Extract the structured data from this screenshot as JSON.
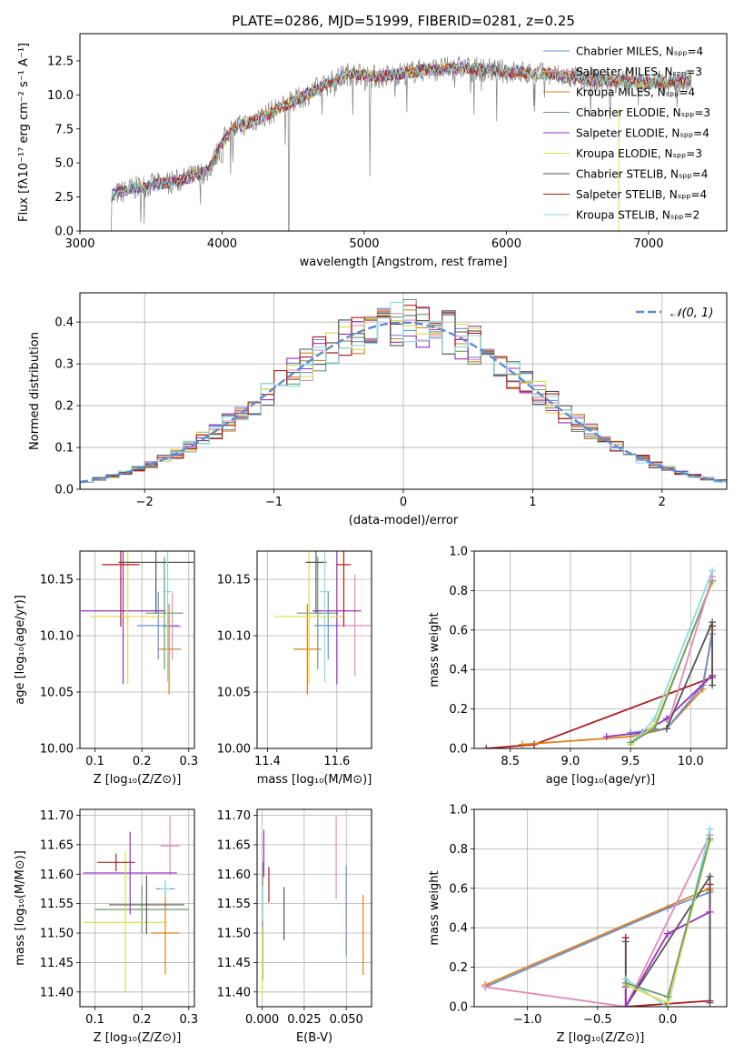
{
  "chart_data": [
    {
      "id": "spectrum",
      "type": "line",
      "title": "PLATE=0286, MJD=51999, FIBERID=0281, z=0.25",
      "xlabel": "wavelength [Angstrom, rest frame]",
      "ylabel": "Flux [fλ10⁻¹⁷ erg cm⁻² s⁻¹ A⁻¹]",
      "xlim": [
        3000,
        7550
      ],
      "ylim": [
        0,
        14.5
      ],
      "xticks": [
        "3000",
        "4000",
        "5000",
        "6000",
        "7000"
      ],
      "yticks": [
        "0.0",
        "2.5",
        "5.0",
        "7.5",
        "10.0",
        "12.5"
      ],
      "observed_color": "#808080",
      "continuum_nodes": {
        "x": [
          3220,
          3400,
          3700,
          3900,
          4050,
          4200,
          4500,
          4700,
          4900,
          5100,
          5400,
          5700,
          6000,
          6300,
          6600,
          6800,
          7000,
          7300
        ],
        "y": [
          2.6,
          3.2,
          3.7,
          4.4,
          7.4,
          8.0,
          9.5,
          10.6,
          11.6,
          11.3,
          11.8,
          12.0,
          11.7,
          11.5,
          11.1,
          11.0,
          10.9,
          11.0
        ]
      },
      "legend": {
        "location": "upper right",
        "entries": [
          {
            "label": "Chabrier MILES, Nₛₚₚ=4",
            "color": "#6a8fd8"
          },
          {
            "label": "Salpeter MILES, Nₛₚₚ=3",
            "color": "#e68ab8"
          },
          {
            "label": "Kroupa MILES, Nₛₚₚ=4",
            "color": "#d98018"
          },
          {
            "label": "Chabrier ELODIE, Nₛₚₚ=3",
            "color": "#6d9a6d"
          },
          {
            "label": "Salpeter ELODIE, Nₛₚₚ=4",
            "color": "#9a2fc0"
          },
          {
            "label": "Kroupa ELODIE, Nₛₚₚ=3",
            "color": "#dede4a"
          },
          {
            "label": "Chabrier STELIB, Nₛₚₚ=4",
            "color": "#555555"
          },
          {
            "label": "Salpeter STELIB, Nₛₚₚ=4",
            "color": "#b21a1a"
          },
          {
            "label": "Kroupa STELIB, Nₛₚₚ=2",
            "color": "#86dce0"
          }
        ]
      }
    },
    {
      "id": "residuals",
      "type": "histogram",
      "xlabel": "(data-model)/error",
      "ylabel": "Normed distribution",
      "xlim": [
        -2.5,
        2.5
      ],
      "ylim": [
        0,
        0.47
      ],
      "xticks": [
        "−2",
        "−1",
        "0",
        "1",
        "2"
      ],
      "yticks": [
        "0.0",
        "0.1",
        "0.2",
        "0.3",
        "0.4"
      ],
      "grid": true,
      "bin_width": 0.1,
      "reference_curve": {
        "label": "𝒩(0, 1)",
        "mean": 0,
        "sigma": 1,
        "color": "#5b8bd4"
      }
    },
    {
      "id": "age-vs-z",
      "type": "scatter",
      "xlabel": "Z [log₁₀(Z/Z⊙)]",
      "ylabel": "age  [log₁₀(age/yr)]",
      "xlim": [
        0.068,
        0.312
      ],
      "ylim": [
        10.0,
        10.175
      ],
      "xticks": [
        "0.1",
        "0.2",
        "0.3"
      ],
      "yticks": [
        "10.00",
        "10.05",
        "10.10",
        "10.15"
      ],
      "grid": true,
      "points": [
        {
          "color": "#6a8fd8",
          "x": 0.235,
          "xerr": 0.045,
          "y": 10.109,
          "yerr": 0.03
        },
        {
          "color": "#e68ab8",
          "x": 0.265,
          "xerr": 0.02,
          "y": 10.108,
          "yerr": 0.03
        },
        {
          "color": "#d98018",
          "x": 0.258,
          "xerr": 0.025,
          "y": 10.088,
          "yerr": 0.04
        },
        {
          "color": "#6d9a6d",
          "x": 0.248,
          "xerr": 0.04,
          "y": 10.12,
          "yerr": 0.05
        },
        {
          "color": "#9a2fc0",
          "x": 0.16,
          "xerr": 0.09,
          "y": 10.122,
          "yerr": 0.065
        },
        {
          "color": "#dede4a",
          "x": 0.17,
          "xerr": 0.08,
          "y": 10.117,
          "yerr": 0.06
        },
        {
          "color": "#555555",
          "x": 0.23,
          "xerr": 0.08,
          "y": 10.165,
          "yerr": 0.045
        },
        {
          "color": "#b21a1a",
          "x": 0.155,
          "xerr": 0.04,
          "y": 10.163,
          "yerr": 0.055
        },
        {
          "color": "#86dce0",
          "x": 0.255,
          "xerr": 0.01,
          "y": 10.139,
          "yerr": 0.08
        }
      ]
    },
    {
      "id": "age-vs-mass",
      "type": "scatter",
      "xlabel": "mass [log₁₀(M/M⊙)]",
      "ylabel": "",
      "xlim": [
        11.37,
        11.7
      ],
      "ylim": [
        10.0,
        10.175
      ],
      "xticks": [
        "11.4",
        "11.6"
      ],
      "yticks": [
        "10.00",
        "10.05",
        "10.10",
        "10.15"
      ],
      "grid": true,
      "points": [
        {
          "color": "#6a8fd8",
          "x": 11.575,
          "xerr": 0.04,
          "y": 10.109,
          "yerr": 0.03
        },
        {
          "color": "#e68ab8",
          "x": 11.652,
          "xerr": 0.045,
          "y": 10.109,
          "yerr": 0.045
        },
        {
          "color": "#d98018",
          "x": 11.515,
          "xerr": 0.04,
          "y": 10.088,
          "yerr": 0.04
        },
        {
          "color": "#6d9a6d",
          "x": 11.545,
          "xerr": 0.06,
          "y": 10.12,
          "yerr": 0.05
        },
        {
          "color": "#9a2fc0",
          "x": 11.6,
          "xerr": 0.07,
          "y": 10.122,
          "yerr": 0.065
        },
        {
          "color": "#dede4a",
          "x": 11.52,
          "xerr": 0.1,
          "y": 10.117,
          "yerr": 0.06
        },
        {
          "color": "#555555",
          "x": 11.54,
          "xerr": 0.03,
          "y": 10.165,
          "yerr": 0.045
        },
        {
          "color": "#b21a1a",
          "x": 11.62,
          "xerr": 0.02,
          "y": 10.163,
          "yerr": 0.055
        },
        {
          "color": "#86dce0",
          "x": 11.565,
          "xerr": 0.015,
          "y": 10.139,
          "yerr": 0.08
        }
      ]
    },
    {
      "id": "weight-vs-age",
      "type": "line",
      "xlabel": "age  [log₁₀(age/yr)]",
      "ylabel": "mass weight",
      "xlim": [
        8.2,
        10.3
      ],
      "ylim": [
        0,
        1.0
      ],
      "xticks": [
        "8.5",
        "9.0",
        "9.5",
        "10.0"
      ],
      "yticks": [
        "0.0",
        "0.2",
        "0.4",
        "0.6",
        "0.8",
        "1.0"
      ],
      "grid": true,
      "series": [
        {
          "color": "#b21a1a",
          "x": [
            8.3,
            8.7,
            10.18,
            10.18
          ],
          "y": [
            0.0,
            0.02,
            0.36,
            0.62
          ]
        },
        {
          "color": "#d98018",
          "x": [
            8.6,
            9.5,
            9.8,
            10.1,
            10.18
          ],
          "y": [
            0.02,
            0.06,
            0.1,
            0.3,
            0.6
          ]
        },
        {
          "color": "#6a8fd8",
          "x": [
            9.5,
            9.8,
            10.1,
            10.18
          ],
          "y": [
            0.08,
            0.1,
            0.32,
            0.58
          ]
        },
        {
          "color": "#9a2fc0",
          "x": [
            9.3,
            9.6,
            9.8,
            10.18
          ],
          "y": [
            0.06,
            0.08,
            0.15,
            0.37
          ]
        },
        {
          "color": "#86dce0",
          "x": [
            9.55,
            9.7,
            10.18
          ],
          "y": [
            0.05,
            0.15,
            0.9
          ]
        },
        {
          "color": "#dede4a",
          "x": [
            9.5,
            9.7,
            10.18
          ],
          "y": [
            0.02,
            0.12,
            0.84
          ]
        },
        {
          "color": "#6d9a6d",
          "x": [
            9.5,
            9.7,
            10.18
          ],
          "y": [
            0.03,
            0.1,
            0.85
          ]
        },
        {
          "color": "#e68ab8",
          "x": [
            9.8,
            10.18
          ],
          "y": [
            0.1,
            0.87
          ]
        },
        {
          "color": "#555555",
          "x": [
            9.8,
            10.18,
            10.18
          ],
          "y": [
            0.1,
            0.64,
            0.32
          ]
        }
      ]
    },
    {
      "id": "mass-vs-z",
      "type": "scatter",
      "xlabel": "Z [log₁₀(Z/Z⊙)]",
      "ylabel": "mass [log₁₀(M/M⊙)]",
      "xlim": [
        0.068,
        0.312
      ],
      "ylim": [
        11.375,
        11.71
      ],
      "xticks": [
        "0.1",
        "0.2",
        "0.3"
      ],
      "yticks": [
        "11.40",
        "11.45",
        "11.50",
        "11.55",
        "11.60",
        "11.65",
        "11.70"
      ],
      "grid": true,
      "points": [
        {
          "color": "#6a8fd8",
          "x": 0.25,
          "xerr": 0.02,
          "y": 11.575,
          "yerr": 0.015
        },
        {
          "color": "#e68ab8",
          "x": 0.26,
          "xerr": 0.02,
          "y": 11.648,
          "yerr": 0.05
        },
        {
          "color": "#d98018",
          "x": 0.25,
          "xerr": 0.03,
          "y": 11.5,
          "yerr": 0.07
        },
        {
          "color": "#6d9a6d",
          "x": 0.2,
          "xerr": 0.1,
          "y": 11.54,
          "yerr": 0.04
        },
        {
          "color": "#9a2fc0",
          "x": 0.175,
          "xerr": 0.1,
          "y": 11.602,
          "yerr": 0.07
        },
        {
          "color": "#dede4a",
          "x": 0.165,
          "xerr": 0.09,
          "y": 11.518,
          "yerr": 0.12
        },
        {
          "color": "#555555",
          "x": 0.21,
          "xerr": 0.08,
          "y": 11.548,
          "yerr": 0.05
        },
        {
          "color": "#b21a1a",
          "x": 0.145,
          "xerr": 0.04,
          "y": 11.62,
          "yerr": 0.015
        },
        {
          "color": "#86dce0",
          "x": 0.25,
          "xerr": 0.01,
          "y": 11.575,
          "yerr": 0.015
        }
      ]
    },
    {
      "id": "mass-vs-ebv",
      "type": "scatter",
      "xlabel": "E(B-V)",
      "ylabel": "",
      "xlim": [
        -0.003,
        0.065
      ],
      "ylim": [
        11.375,
        11.71
      ],
      "xticks": [
        "0.000",
        "0.025",
        "0.050"
      ],
      "yticks": [
        "11.40",
        "11.45",
        "11.50",
        "11.55",
        "11.60",
        "11.65",
        "11.70"
      ],
      "grid": true,
      "points": [
        {
          "color": "#6a8fd8",
          "x": 0.05,
          "xerr": 0,
          "y": 11.538,
          "yerr": 0.077
        },
        {
          "color": "#e68ab8",
          "x": 0.044,
          "xerr": 0,
          "y": 11.628,
          "yerr": 0.07
        },
        {
          "color": "#d98018",
          "x": 0.06,
          "xerr": 0,
          "y": 11.497,
          "yerr": 0.068
        },
        {
          "color": "#6d9a6d",
          "x": 0.0003,
          "xerr": 0,
          "y": 11.52,
          "yerr": 0.1
        },
        {
          "color": "#9a2fc0",
          "x": 0.001,
          "xerr": 0,
          "y": 11.635,
          "yerr": 0.04
        },
        {
          "color": "#dede4a",
          "x": 0.0,
          "xerr": 0,
          "y": 11.45,
          "yerr": 0.06
        },
        {
          "color": "#555555",
          "x": 0.013,
          "xerr": 0,
          "y": 11.533,
          "yerr": 0.045
        },
        {
          "color": "#b21a1a",
          "x": 0.004,
          "xerr": 0,
          "y": 11.582,
          "yerr": 0.03
        },
        {
          "color": "#86dce0",
          "x": 0.0002,
          "xerr": 0,
          "y": 11.55,
          "yerr": 0.03
        }
      ]
    },
    {
      "id": "weight-vs-z",
      "type": "line",
      "xlabel": "Z [log₁₀(Z/Z⊙)]",
      "ylabel": "mass weight",
      "xlim": [
        -1.38,
        0.42
      ],
      "ylim": [
        0,
        1.0
      ],
      "xticks": [
        "−1.0",
        "−0.5",
        "0.0"
      ],
      "yticks": [
        "0.0",
        "0.2",
        "0.4",
        "0.6",
        "0.8",
        "1.0"
      ],
      "grid": true,
      "series": [
        {
          "color": "#6a8fd8",
          "x": [
            -1.3,
            0.0,
            0.3
          ],
          "y": [
            0.1,
            0.5,
            0.58
          ]
        },
        {
          "color": "#d98018",
          "x": [
            -1.3,
            0.3,
            0.3
          ],
          "y": [
            0.11,
            0.6,
            0.59
          ]
        },
        {
          "color": "#e68ab8",
          "x": [
            -1.3,
            -0.3,
            0.3
          ],
          "y": [
            0.1,
            0.0,
            0.87
          ]
        },
        {
          "color": "#b21a1a",
          "x": [
            -0.3,
            -0.3,
            0.3,
            0.3
          ],
          "y": [
            0.35,
            0.0,
            0.03,
            0.62
          ]
        },
        {
          "color": "#555555",
          "x": [
            -0.3,
            -0.3,
            0.3,
            0.3
          ],
          "y": [
            0.33,
            0.0,
            0.66,
            0.02
          ]
        },
        {
          "color": "#9a2fc0",
          "x": [
            -0.3,
            -0.3,
            0.0,
            0.3
          ],
          "y": [
            0.1,
            0.0,
            0.37,
            0.48
          ]
        },
        {
          "color": "#86dce0",
          "x": [
            -0.3,
            0.0,
            0.3
          ],
          "y": [
            0.14,
            0.0,
            0.9
          ]
        },
        {
          "color": "#dede4a",
          "x": [
            -0.3,
            0.0,
            0.3
          ],
          "y": [
            0.11,
            0.02,
            0.84
          ]
        },
        {
          "color": "#6d9a6d",
          "x": [
            -0.3,
            0.0,
            0.3
          ],
          "y": [
            0.12,
            0.05,
            0.85
          ]
        }
      ]
    }
  ]
}
